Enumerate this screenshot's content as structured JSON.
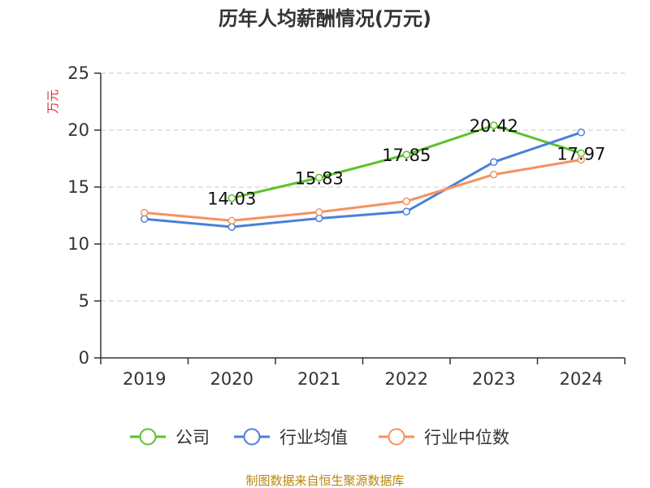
{
  "chart_data": {
    "type": "line",
    "title": "历年人均薪酬情况(万元)",
    "ylabel": "万元",
    "xlabel": "",
    "ylim": [
      0,
      25
    ],
    "yticks": [
      0,
      5,
      10,
      15,
      20,
      25
    ],
    "categories": [
      "2019",
      "2020",
      "2021",
      "2022",
      "2023",
      "2024"
    ],
    "grid": true,
    "legend_position": "bottom",
    "series": [
      {
        "name": "公司",
        "color": "#5cc22b",
        "values": [
          null,
          14.03,
          15.83,
          17.85,
          20.42,
          17.97
        ],
        "labels": [
          null,
          "14.03",
          "15.83",
          "17.85",
          "20.42",
          "17.97"
        ]
      },
      {
        "name": "行业均值",
        "color": "#4a80d9",
        "values": [
          12.2,
          11.5,
          12.25,
          12.85,
          17.2,
          19.8
        ],
        "labels": [
          null,
          null,
          null,
          null,
          null,
          null
        ]
      },
      {
        "name": "行业中位数",
        "color": "#f5925e",
        "values": [
          12.75,
          12.05,
          12.8,
          13.75,
          16.1,
          17.4
        ],
        "labels": [
          null,
          null,
          null,
          null,
          null,
          null
        ]
      }
    ],
    "source": "制图数据来自恒生聚源数据库"
  }
}
